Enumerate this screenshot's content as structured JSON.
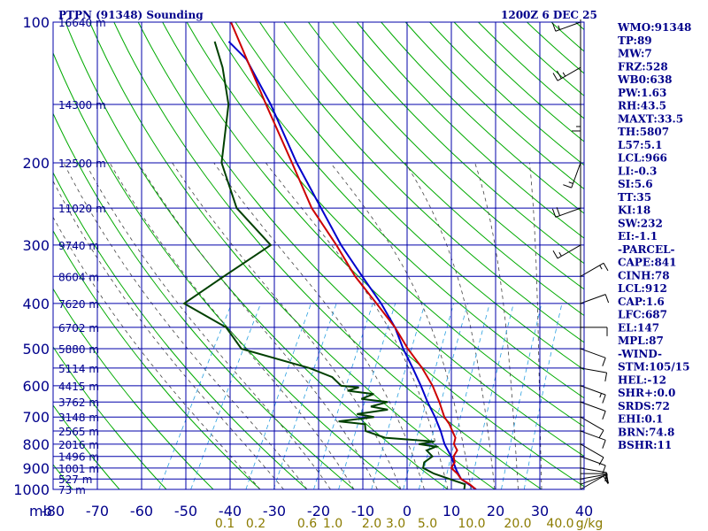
{
  "header": {
    "station": "PTPN (91348) Sounding",
    "time": "1200Z  6 DEC 25"
  },
  "colors": {
    "grid": "#0000aa",
    "dry_adiabat": "#00aa00",
    "moist_adiabat": "#444444",
    "mixing_ratio": "#2aa0e0",
    "temperature": "#cc0000",
    "dewpoint": "#004000",
    "parcel": "#0000cc",
    "wind": "#000000",
    "mix_label": "#8b7b00"
  },
  "chart_data": {
    "type": "skew-t",
    "pressure_axis": {
      "unit": "mb",
      "ticks": [
        {
          "label": "100",
          "p": 100
        },
        {
          "label": "200",
          "p": 200
        },
        {
          "label": "300",
          "p": 300
        },
        {
          "label": "400",
          "p": 400
        },
        {
          "label": "500",
          "p": 500
        },
        {
          "label": "600",
          "p": 600
        },
        {
          "label": "700",
          "p": 700
        },
        {
          "label": "800",
          "p": 800
        },
        {
          "label": "900",
          "p": 900
        },
        {
          "label": "1000",
          "p": 1000
        }
      ]
    },
    "temperature_axis": {
      "ticks": [
        {
          "label": "-80",
          "t": -80
        },
        {
          "label": "-70",
          "t": -70
        },
        {
          "label": "-60",
          "t": -60
        },
        {
          "label": "-50",
          "t": -50
        },
        {
          "label": "-40",
          "t": -40
        },
        {
          "label": "-30",
          "t": -30
        },
        {
          "label": "-20",
          "t": -20
        },
        {
          "label": "-10",
          "t": -10
        },
        {
          "label": "0",
          "t": 0
        },
        {
          "label": "10",
          "t": 10
        },
        {
          "label": "20",
          "t": 20
        },
        {
          "label": "30",
          "t": 30
        },
        {
          "label": "40",
          "t": 40
        }
      ]
    },
    "mixing_ratio_labels": [
      "0.1",
      "0.2",
      "0.6",
      "1.0",
      "2.0",
      "3.0",
      "5.0",
      "10.0",
      "20.0",
      "40.0",
      "g/kg"
    ],
    "height_labels": [
      {
        "label": "16640 m",
        "p": 100
      },
      {
        "label": "14300 m",
        "p": 150
      },
      {
        "label": "12500 m",
        "p": 200
      },
      {
        "label": "11020 m",
        "p": 250
      },
      {
        "label": "9740 m",
        "p": 300
      },
      {
        "label": "8604 m",
        "p": 350
      },
      {
        "label": "7620 m",
        "p": 400
      },
      {
        "label": "6702 m",
        "p": 450
      },
      {
        "label": "5880 m",
        "p": 500
      },
      {
        "label": "5114 m",
        "p": 550
      },
      {
        "label": "4415 m",
        "p": 600
      },
      {
        "label": "3762 m",
        "p": 650
      },
      {
        "label": "3148 m",
        "p": 700
      },
      {
        "label": "2565 m",
        "p": 750
      },
      {
        "label": "2016 m",
        "p": 800
      },
      {
        "label": "1496 m",
        "p": 850
      },
      {
        "label": "1001 m",
        "p": 900
      },
      {
        "label": "527 m",
        "p": 950
      },
      {
        "label": "73 m",
        "p": 1000
      }
    ],
    "temperature_profile": [
      {
        "p": 1000,
        "t": 26
      },
      {
        "p": 975,
        "t": 24
      },
      {
        "p": 950,
        "t": 21.5
      },
      {
        "p": 925,
        "t": 20
      },
      {
        "p": 900,
        "t": 18
      },
      {
        "p": 875,
        "t": 18
      },
      {
        "p": 850,
        "t": 17
      },
      {
        "p": 825,
        "t": 17
      },
      {
        "p": 800,
        "t": 15.5
      },
      {
        "p": 775,
        "t": 15
      },
      {
        "p": 750,
        "t": 13.5
      },
      {
        "p": 725,
        "t": 12
      },
      {
        "p": 700,
        "t": 10
      },
      {
        "p": 650,
        "t": 7
      },
      {
        "p": 600,
        "t": 3.5
      },
      {
        "p": 550,
        "t": -1
      },
      {
        "p": 500,
        "t": -6.5
      },
      {
        "p": 450,
        "t": -12
      },
      {
        "p": 400,
        "t": -19
      },
      {
        "p": 350,
        "t": -27
      },
      {
        "p": 300,
        "t": -35
      },
      {
        "p": 250,
        "t": -45
      },
      {
        "p": 200,
        "t": -55
      },
      {
        "p": 150,
        "t": -68
      },
      {
        "p": 100,
        "t": -86
      }
    ],
    "dewpoint_profile": [
      {
        "p": 1000,
        "t": 23.5
      },
      {
        "p": 975,
        "t": 23
      },
      {
        "p": 950,
        "t": 19
      },
      {
        "p": 925,
        "t": 15
      },
      {
        "p": 900,
        "t": 12
      },
      {
        "p": 875,
        "t": 11.5
      },
      {
        "p": 850,
        "t": 12.5
      },
      {
        "p": 825,
        "t": 10.5
      },
      {
        "p": 810,
        "t": 12
      },
      {
        "p": 800,
        "t": 8
      },
      {
        "p": 790,
        "t": 11
      },
      {
        "p": 775,
        "t": 0
      },
      {
        "p": 750,
        "t": -5
      },
      {
        "p": 725,
        "t": -6
      },
      {
        "p": 715,
        "t": -12
      },
      {
        "p": 700,
        "t": -5
      },
      {
        "p": 690,
        "t": -9
      },
      {
        "p": 675,
        "t": -3
      },
      {
        "p": 665,
        "t": -7
      },
      {
        "p": 650,
        "t": -4
      },
      {
        "p": 640,
        "t": -10
      },
      {
        "p": 625,
        "t": -8
      },
      {
        "p": 615,
        "t": -14
      },
      {
        "p": 605,
        "t": -12
      },
      {
        "p": 600,
        "t": -16
      },
      {
        "p": 575,
        "t": -19
      },
      {
        "p": 550,
        "t": -25
      },
      {
        "p": 500,
        "t": -42
      },
      {
        "p": 450,
        "t": -48
      },
      {
        "p": 400,
        "t": -60
      },
      {
        "p": 350,
        "t": -55
      },
      {
        "p": 300,
        "t": -49
      },
      {
        "p": 250,
        "t": -61
      },
      {
        "p": 200,
        "t": -70
      },
      {
        "p": 150,
        "t": -76
      },
      {
        "p": 125,
        "t": -82
      },
      {
        "p": 110,
        "t": -87
      }
    ],
    "parcel_profile": [
      {
        "p": 1000,
        "t": 26
      },
      {
        "p": 950,
        "t": 21.5
      },
      {
        "p": 912,
        "t": 19.5
      },
      {
        "p": 850,
        "t": 16.5
      },
      {
        "p": 800,
        "t": 13.5
      },
      {
        "p": 750,
        "t": 11
      },
      {
        "p": 700,
        "t": 8
      },
      {
        "p": 650,
        "t": 4.5
      },
      {
        "p": 600,
        "t": 1
      },
      {
        "p": 550,
        "t": -3
      },
      {
        "p": 500,
        "t": -7.5
      },
      {
        "p": 450,
        "t": -12
      },
      {
        "p": 400,
        "t": -18
      },
      {
        "p": 350,
        "t": -25.5
      },
      {
        "p": 300,
        "t": -34
      },
      {
        "p": 250,
        "t": -43
      },
      {
        "p": 200,
        "t": -54
      },
      {
        "p": 150,
        "t": -67
      },
      {
        "p": 120,
        "t": -78
      },
      {
        "p": 110,
        "t": -84
      }
    ],
    "wind_barbs": [
      {
        "p": 1000,
        "dir": 60,
        "spd": 10
      },
      {
        "p": 975,
        "dir": 70,
        "spd": 10
      },
      {
        "p": 950,
        "dir": 80,
        "spd": 10
      },
      {
        "p": 925,
        "dir": 90,
        "spd": 10
      },
      {
        "p": 900,
        "dir": 100,
        "spd": 10
      },
      {
        "p": 850,
        "dir": 110,
        "spd": 10
      },
      {
        "p": 800,
        "dir": 120,
        "spd": 10
      },
      {
        "p": 750,
        "dir": 110,
        "spd": 10
      },
      {
        "p": 700,
        "dir": 120,
        "spd": 10
      },
      {
        "p": 650,
        "dir": 110,
        "spd": 10
      },
      {
        "p": 600,
        "dir": 110,
        "spd": 15
      },
      {
        "p": 550,
        "dir": 100,
        "spd": 10
      },
      {
        "p": 500,
        "dir": 110,
        "spd": 10
      },
      {
        "p": 450,
        "dir": 90,
        "spd": 10
      },
      {
        "p": 400,
        "dir": 70,
        "spd": 10
      },
      {
        "p": 350,
        "dir": 60,
        "spd": 15
      },
      {
        "p": 300,
        "dir": 240,
        "spd": 15
      },
      {
        "p": 250,
        "dir": 250,
        "spd": 20
      },
      {
        "p": 200,
        "dir": 200,
        "spd": 15
      },
      {
        "p": 150,
        "dir": 180,
        "spd": 15
      },
      {
        "p": 125,
        "dir": 240,
        "spd": 25
      },
      {
        "p": 100,
        "dir": 250,
        "spd": 15
      }
    ]
  },
  "indices": [
    "WMO:91348",
    "TP:89",
    "MW:7",
    "FRZ:528",
    "WB0:638",
    "PW:1.63",
    "RH:43.5",
    "MAXT:33.5",
    "TH:5807",
    "L57:5.1",
    "LCL:966",
    "LI:-0.3",
    "SI:5.6",
    "TT:35",
    "KI:18",
    "SW:232",
    "EI:-1.1",
    "-PARCEL-",
    "CAPE:841",
    "CINH:78",
    "LCL:912",
    "CAP:1.6",
    "LFC:687",
    "EL:147",
    "MPL:87",
    "-WIND-",
    "STM:105/15",
    "HEL:-12",
    "SHR+:0.0",
    "SRDS:72",
    "EHI:0.1",
    "BRN:74.8",
    "BSHR:11"
  ]
}
